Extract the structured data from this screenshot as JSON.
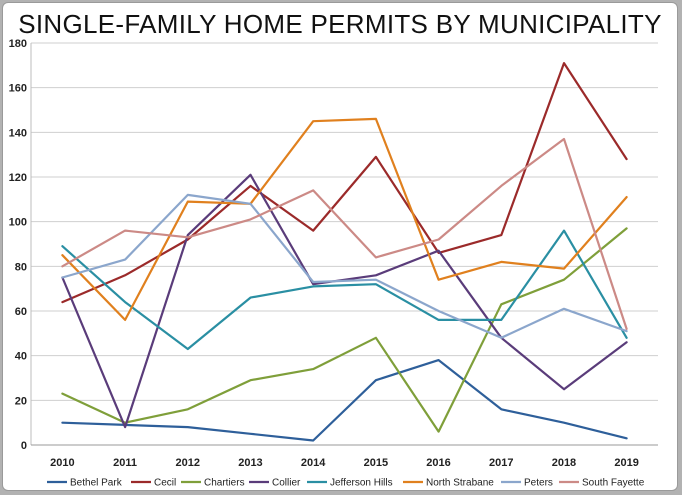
{
  "chart_data": {
    "type": "line",
    "title": "SINGLE-FAMILY HOME PERMITS BY MUNICIPALITY",
    "x": [
      "2010",
      "2011",
      "2012",
      "2013",
      "2014",
      "2015",
      "2016",
      "2017",
      "2018",
      "2019"
    ],
    "y_ticks": [
      "0",
      "20",
      "40",
      "60",
      "80",
      "100",
      "120",
      "140",
      "160",
      "180"
    ],
    "ylim": [
      0,
      180
    ],
    "grid": true,
    "legend_position": "bottom",
    "series": [
      {
        "name": "Bethel Park",
        "color": "#2e5f9a",
        "values": [
          10,
          9,
          8,
          5,
          2,
          29,
          38,
          16,
          10,
          3
        ]
      },
      {
        "name": "Cecil",
        "color": "#9b2a2a",
        "values": [
          64,
          76,
          92,
          116,
          96,
          129,
          86,
          94,
          171,
          128
        ]
      },
      {
        "name": "Chartiers",
        "color": "#7f9f3a",
        "values": [
          23,
          10,
          16,
          29,
          34,
          48,
          6,
          63,
          74,
          97
        ]
      },
      {
        "name": "Collier",
        "color": "#5a3c7a",
        "values": [
          75,
          8,
          94,
          121,
          72,
          76,
          87,
          48,
          25,
          46
        ]
      },
      {
        "name": "Jefferson Hills",
        "color": "#2a8fa3",
        "values": [
          89,
          64,
          43,
          66,
          71,
          72,
          56,
          56,
          96,
          48
        ]
      },
      {
        "name": "North Strabane",
        "color": "#e0801e",
        "values": [
          85,
          56,
          109,
          108,
          145,
          146,
          74,
          82,
          79,
          111
        ]
      },
      {
        "name": "Peters",
        "color": "#8ba6cc",
        "values": [
          75,
          83,
          112,
          108,
          73,
          74,
          60,
          48,
          61,
          51
        ]
      },
      {
        "name": "South Fayette",
        "color": "#cc8a86",
        "values": [
          80,
          96,
          93,
          101,
          114,
          84,
          92,
          116,
          137,
          52
        ]
      }
    ]
  }
}
